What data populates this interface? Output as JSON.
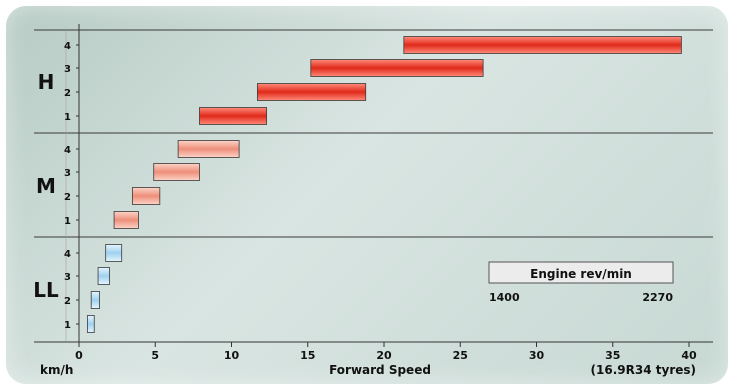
{
  "chart_data": {
    "type": "bar",
    "orientation": "horizontal-range",
    "xlabel": "Forward Speed",
    "x_unit_label": "km/h",
    "x_note": "(16.9R34 tyres)",
    "xlim": [
      -1.5,
      40
    ],
    "xticks": [
      0,
      5,
      10,
      15,
      20,
      25,
      30,
      35,
      40
    ],
    "grid": false,
    "groups": [
      {
        "name": "H",
        "color": "#e03322",
        "gears": [
          {
            "gear": "1",
            "start": 7.9,
            "end": 12.3
          },
          {
            "gear": "2",
            "start": 11.7,
            "end": 18.8
          },
          {
            "gear": "3",
            "start": 15.2,
            "end": 26.5
          },
          {
            "gear": "4",
            "start": 21.3,
            "end": 39.5
          }
        ]
      },
      {
        "name": "M",
        "color": "#f09a86",
        "gears": [
          {
            "gear": "1",
            "start": 2.3,
            "end": 3.9
          },
          {
            "gear": "2",
            "start": 3.5,
            "end": 5.3
          },
          {
            "gear": "3",
            "start": 4.9,
            "end": 7.9
          },
          {
            "gear": "4",
            "start": 6.5,
            "end": 10.5
          }
        ]
      },
      {
        "name": "LL",
        "color": "#a9d7ef",
        "gears": [
          {
            "gear": "1",
            "start": 0.55,
            "end": 1.0
          },
          {
            "gear": "2",
            "start": 0.8,
            "end": 1.35
          },
          {
            "gear": "3",
            "start": 1.25,
            "end": 2.0
          },
          {
            "gear": "4",
            "start": 1.75,
            "end": 2.8
          }
        ]
      }
    ],
    "legend": {
      "title": "Engine rev/min",
      "min_label": "1400",
      "max_label": "2270",
      "position": "bottom-right"
    }
  }
}
